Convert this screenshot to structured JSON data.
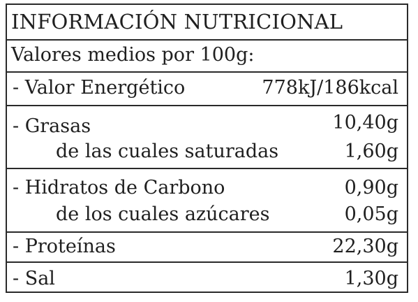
{
  "title": "INFORMACIÓN NUTRICIONAL",
  "subtitle": "Valores medios por 100g:",
  "rows": [
    {
      "label": "- Valor Energético",
      "value": "778kJ/186kcal"
    },
    {
      "label": "- Grasas",
      "value": "10,40g"
    },
    {
      "label": "de las cuales saturadas",
      "value": "1,60g"
    },
    {
      "label": "- Hidratos de Carbono",
      "value": "0,90g"
    },
    {
      "label": "de los cuales azúcares",
      "value": "0,05g"
    },
    {
      "label": "- Proteínas",
      "value": "22,30g"
    },
    {
      "label": "- Sal",
      "value": "1,30g"
    }
  ],
  "colors": {
    "border": "#2a2a2a",
    "text": "#1f1f1f",
    "background": "#ffffff"
  }
}
